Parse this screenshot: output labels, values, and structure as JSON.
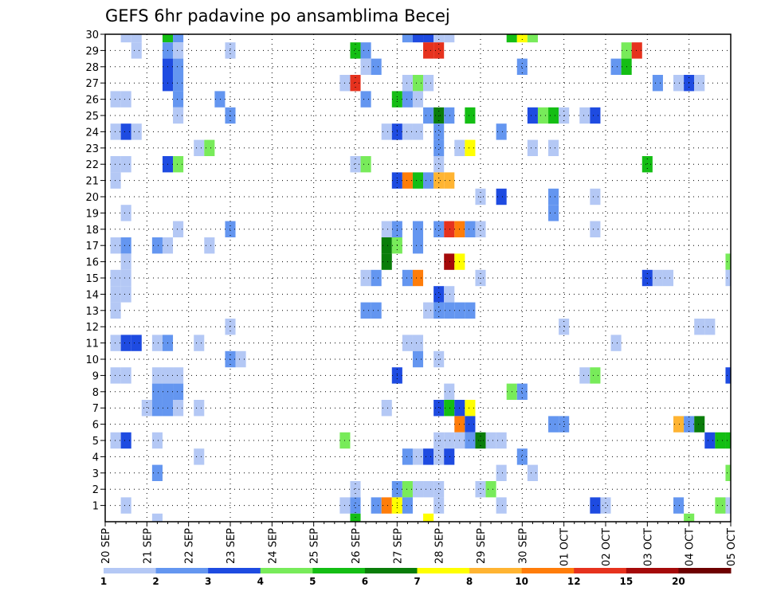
{
  "chart_data": {
    "type": "heatmap",
    "title": "GEFS 6hr padavine po ansamblima Becej",
    "xlabel": "",
    "ylabel": "",
    "x_range": [
      0,
      60
    ],
    "y_range": [
      0,
      30
    ],
    "x_ticks": [
      {
        "pos": 0,
        "label": "20 SEP"
      },
      {
        "pos": 4,
        "label": "21 SEP"
      },
      {
        "pos": 8,
        "label": "22 SEP"
      },
      {
        "pos": 12,
        "label": "23 SEP"
      },
      {
        "pos": 16,
        "label": "24 SEP"
      },
      {
        "pos": 20,
        "label": "25 SEP"
      },
      {
        "pos": 24,
        "label": "26 SEP"
      },
      {
        "pos": 28,
        "label": "27 SEP"
      },
      {
        "pos": 32,
        "label": "28 SEP"
      },
      {
        "pos": 36,
        "label": "29 SEP"
      },
      {
        "pos": 40,
        "label": "30 SEP"
      },
      {
        "pos": 44,
        "label": "01 OCT"
      },
      {
        "pos": 48,
        "label": "02 OCT"
      },
      {
        "pos": 52,
        "label": "03 OCT"
      },
      {
        "pos": 56,
        "label": "04 OCT"
      },
      {
        "pos": 60,
        "label": "05 OCT"
      }
    ],
    "y_ticks": [
      "1",
      "2",
      "3",
      "4",
      "5",
      "6",
      "7",
      "8",
      "9",
      "10",
      "11",
      "12",
      "13",
      "14",
      "15",
      "16",
      "17",
      "18",
      "19",
      "20",
      "21",
      "22",
      "23",
      "24",
      "25",
      "26",
      "27",
      "28",
      "29",
      "30"
    ],
    "grid": true,
    "colorbar": {
      "labels": [
        "1",
        "2",
        "3",
        "4",
        "5",
        "6",
        "7",
        "8",
        "10",
        "12",
        "15",
        "20"
      ],
      "colors": [
        "#b4c8f5",
        "#6496f0",
        "#1e4be1",
        "#78eb5a",
        "#14be14",
        "#0a7d0a",
        "#ffff00",
        "#ffb432",
        "#ff7d0a",
        "#e6321e",
        "#a50a0a",
        "#6e0000"
      ]
    },
    "cells": [
      [
        30,
        2,
        1
      ],
      [
        30,
        3,
        1
      ],
      [
        30,
        6,
        5
      ],
      [
        30,
        7,
        2
      ],
      [
        30,
        29,
        2
      ],
      [
        30,
        30,
        3
      ],
      [
        30,
        31,
        3
      ],
      [
        30,
        32,
        1
      ],
      [
        30,
        33,
        1
      ],
      [
        30,
        39,
        5
      ],
      [
        30,
        40,
        7
      ],
      [
        30,
        41,
        4
      ],
      [
        29,
        3,
        1
      ],
      [
        29,
        6,
        2
      ],
      [
        29,
        7,
        1
      ],
      [
        29,
        12,
        1
      ],
      [
        29,
        24,
        5
      ],
      [
        29,
        25,
        2
      ],
      [
        29,
        31,
        10
      ],
      [
        29,
        32,
        10
      ],
      [
        29,
        50,
        4
      ],
      [
        29,
        51,
        10
      ],
      [
        28,
        6,
        3
      ],
      [
        28,
        7,
        2
      ],
      [
        28,
        25,
        1
      ],
      [
        28,
        26,
        2
      ],
      [
        28,
        40,
        2
      ],
      [
        28,
        49,
        2
      ],
      [
        28,
        50,
        5
      ],
      [
        27,
        6,
        3
      ],
      [
        27,
        7,
        2
      ],
      [
        27,
        23,
        1
      ],
      [
        27,
        24,
        10
      ],
      [
        27,
        29,
        1
      ],
      [
        27,
        30,
        4
      ],
      [
        27,
        31,
        1
      ],
      [
        27,
        53,
        2
      ],
      [
        27,
        55,
        1
      ],
      [
        27,
        56,
        3
      ],
      [
        27,
        57,
        1
      ],
      [
        26,
        1,
        1
      ],
      [
        26,
        2,
        1
      ],
      [
        26,
        7,
        2
      ],
      [
        26,
        11,
        2
      ],
      [
        26,
        25,
        2
      ],
      [
        26,
        28,
        5
      ],
      [
        26,
        29,
        2
      ],
      [
        26,
        30,
        1
      ],
      [
        25,
        7,
        1
      ],
      [
        25,
        12,
        2
      ],
      [
        25,
        31,
        2
      ],
      [
        25,
        32,
        6
      ],
      [
        25,
        33,
        2
      ],
      [
        25,
        35,
        5
      ],
      [
        25,
        41,
        3
      ],
      [
        25,
        42,
        4
      ],
      [
        25,
        43,
        5
      ],
      [
        25,
        44,
        1
      ],
      [
        25,
        46,
        1
      ],
      [
        25,
        47,
        3
      ],
      [
        24,
        1,
        1
      ],
      [
        24,
        2,
        3
      ],
      [
        24,
        3,
        1
      ],
      [
        24,
        27,
        1
      ],
      [
        24,
        28,
        3
      ],
      [
        24,
        29,
        1
      ],
      [
        24,
        30,
        1
      ],
      [
        24,
        32,
        2
      ],
      [
        24,
        38,
        2
      ],
      [
        23,
        9,
        1
      ],
      [
        23,
        10,
        4
      ],
      [
        23,
        32,
        2
      ],
      [
        23,
        34,
        1
      ],
      [
        23,
        35,
        7
      ],
      [
        23,
        41,
        1
      ],
      [
        23,
        43,
        1
      ],
      [
        22,
        1,
        1
      ],
      [
        22,
        2,
        1
      ],
      [
        22,
        6,
        3
      ],
      [
        22,
        7,
        4
      ],
      [
        22,
        24,
        1
      ],
      [
        22,
        25,
        4
      ],
      [
        22,
        32,
        1
      ],
      [
        22,
        52,
        5
      ],
      [
        21,
        1,
        1
      ],
      [
        21,
        28,
        3
      ],
      [
        21,
        29,
        9
      ],
      [
        21,
        30,
        5
      ],
      [
        21,
        31,
        2
      ],
      [
        21,
        32,
        8
      ],
      [
        21,
        33,
        8
      ],
      [
        20,
        36,
        1
      ],
      [
        20,
        38,
        3
      ],
      [
        20,
        43,
        2
      ],
      [
        20,
        47,
        1
      ],
      [
        19,
        2,
        1
      ],
      [
        19,
        43,
        2
      ],
      [
        18,
        7,
        1
      ],
      [
        18,
        12,
        2
      ],
      [
        18,
        27,
        1
      ],
      [
        18,
        28,
        2
      ],
      [
        18,
        30,
        2
      ],
      [
        18,
        32,
        2
      ],
      [
        18,
        33,
        10
      ],
      [
        18,
        34,
        9
      ],
      [
        18,
        35,
        2
      ],
      [
        18,
        36,
        1
      ],
      [
        18,
        47,
        1
      ],
      [
        17,
        1,
        1
      ],
      [
        17,
        2,
        2
      ],
      [
        17,
        5,
        2
      ],
      [
        17,
        6,
        1
      ],
      [
        17,
        10,
        1
      ],
      [
        17,
        27,
        6
      ],
      [
        17,
        28,
        4
      ],
      [
        17,
        30,
        2
      ],
      [
        16,
        2,
        1
      ],
      [
        16,
        27,
        6
      ],
      [
        16,
        33,
        11
      ],
      [
        16,
        34,
        7
      ],
      [
        16,
        60,
        4
      ],
      [
        15,
        1,
        1
      ],
      [
        15,
        2,
        1
      ],
      [
        15,
        25,
        1
      ],
      [
        15,
        26,
        2
      ],
      [
        15,
        29,
        2
      ],
      [
        15,
        30,
        9
      ],
      [
        15,
        36,
        1
      ],
      [
        15,
        52,
        3
      ],
      [
        15,
        53,
        1
      ],
      [
        15,
        54,
        1
      ],
      [
        15,
        60,
        1
      ],
      [
        14,
        1,
        1
      ],
      [
        14,
        2,
        1
      ],
      [
        14,
        32,
        3
      ],
      [
        14,
        33,
        1
      ],
      [
        13,
        1,
        1
      ],
      [
        13,
        25,
        2
      ],
      [
        13,
        26,
        2
      ],
      [
        13,
        31,
        1
      ],
      [
        13,
        32,
        2
      ],
      [
        13,
        33,
        2
      ],
      [
        13,
        34,
        2
      ],
      [
        13,
        35,
        2
      ],
      [
        12,
        12,
        1
      ],
      [
        12,
        44,
        1
      ],
      [
        12,
        57,
        1
      ],
      [
        12,
        58,
        1
      ],
      [
        11,
        1,
        1
      ],
      [
        11,
        2,
        3
      ],
      [
        11,
        3,
        3
      ],
      [
        11,
        5,
        1
      ],
      [
        11,
        6,
        2
      ],
      [
        11,
        9,
        1
      ],
      [
        11,
        29,
        1
      ],
      [
        11,
        30,
        1
      ],
      [
        11,
        49,
        1
      ],
      [
        10,
        12,
        2
      ],
      [
        10,
        13,
        1
      ],
      [
        10,
        30,
        2
      ],
      [
        10,
        32,
        1
      ],
      [
        9,
        1,
        1
      ],
      [
        9,
        2,
        1
      ],
      [
        9,
        5,
        1
      ],
      [
        9,
        6,
        1
      ],
      [
        9,
        7,
        1
      ],
      [
        9,
        28,
        3
      ],
      [
        9,
        46,
        1
      ],
      [
        9,
        47,
        4
      ],
      [
        9,
        60,
        3
      ],
      [
        8,
        5,
        2
      ],
      [
        8,
        6,
        2
      ],
      [
        8,
        7,
        2
      ],
      [
        8,
        33,
        1
      ],
      [
        8,
        39,
        4
      ],
      [
        8,
        40,
        2
      ],
      [
        7,
        4,
        1
      ],
      [
        7,
        5,
        2
      ],
      [
        7,
        6,
        2
      ],
      [
        7,
        7,
        1
      ],
      [
        7,
        9,
        1
      ],
      [
        7,
        27,
        1
      ],
      [
        7,
        32,
        3
      ],
      [
        7,
        33,
        5
      ],
      [
        7,
        34,
        3
      ],
      [
        7,
        35,
        7
      ],
      [
        6,
        34,
        9
      ],
      [
        6,
        35,
        3
      ],
      [
        6,
        43,
        2
      ],
      [
        6,
        44,
        2
      ],
      [
        6,
        55,
        8
      ],
      [
        6,
        56,
        2
      ],
      [
        6,
        57,
        6
      ],
      [
        5,
        1,
        1
      ],
      [
        5,
        2,
        3
      ],
      [
        5,
        5,
        1
      ],
      [
        5,
        23,
        4
      ],
      [
        5,
        32,
        1
      ],
      [
        5,
        33,
        1
      ],
      [
        5,
        34,
        1
      ],
      [
        5,
        35,
        2
      ],
      [
        5,
        36,
        6
      ],
      [
        5,
        37,
        1
      ],
      [
        5,
        38,
        1
      ],
      [
        5,
        58,
        3
      ],
      [
        5,
        59,
        5
      ],
      [
        5,
        60,
        5
      ],
      [
        4,
        9,
        1
      ],
      [
        4,
        29,
        2
      ],
      [
        4,
        30,
        1
      ],
      [
        4,
        31,
        3
      ],
      [
        4,
        32,
        1
      ],
      [
        4,
        33,
        3
      ],
      [
        4,
        40,
        2
      ],
      [
        3,
        5,
        2
      ],
      [
        3,
        38,
        1
      ],
      [
        3,
        41,
        1
      ],
      [
        3,
        60,
        4
      ],
      [
        2,
        24,
        1
      ],
      [
        2,
        28,
        2
      ],
      [
        2,
        29,
        4
      ],
      [
        2,
        30,
        1
      ],
      [
        2,
        31,
        1
      ],
      [
        2,
        32,
        1
      ],
      [
        2,
        36,
        1
      ],
      [
        2,
        37,
        4
      ],
      [
        1,
        2,
        1
      ],
      [
        1,
        23,
        1
      ],
      [
        1,
        24,
        2
      ],
      [
        1,
        26,
        2
      ],
      [
        1,
        27,
        9
      ],
      [
        1,
        28,
        7
      ],
      [
        1,
        29,
        2
      ],
      [
        1,
        32,
        1
      ],
      [
        1,
        38,
        1
      ],
      [
        1,
        47,
        3
      ],
      [
        1,
        48,
        1
      ],
      [
        1,
        55,
        2
      ],
      [
        1,
        59,
        4
      ],
      [
        1,
        60,
        1
      ],
      [
        0,
        5,
        1
      ],
      [
        0,
        24,
        5
      ],
      [
        0,
        31,
        7
      ],
      [
        0,
        56,
        4
      ]
    ]
  }
}
